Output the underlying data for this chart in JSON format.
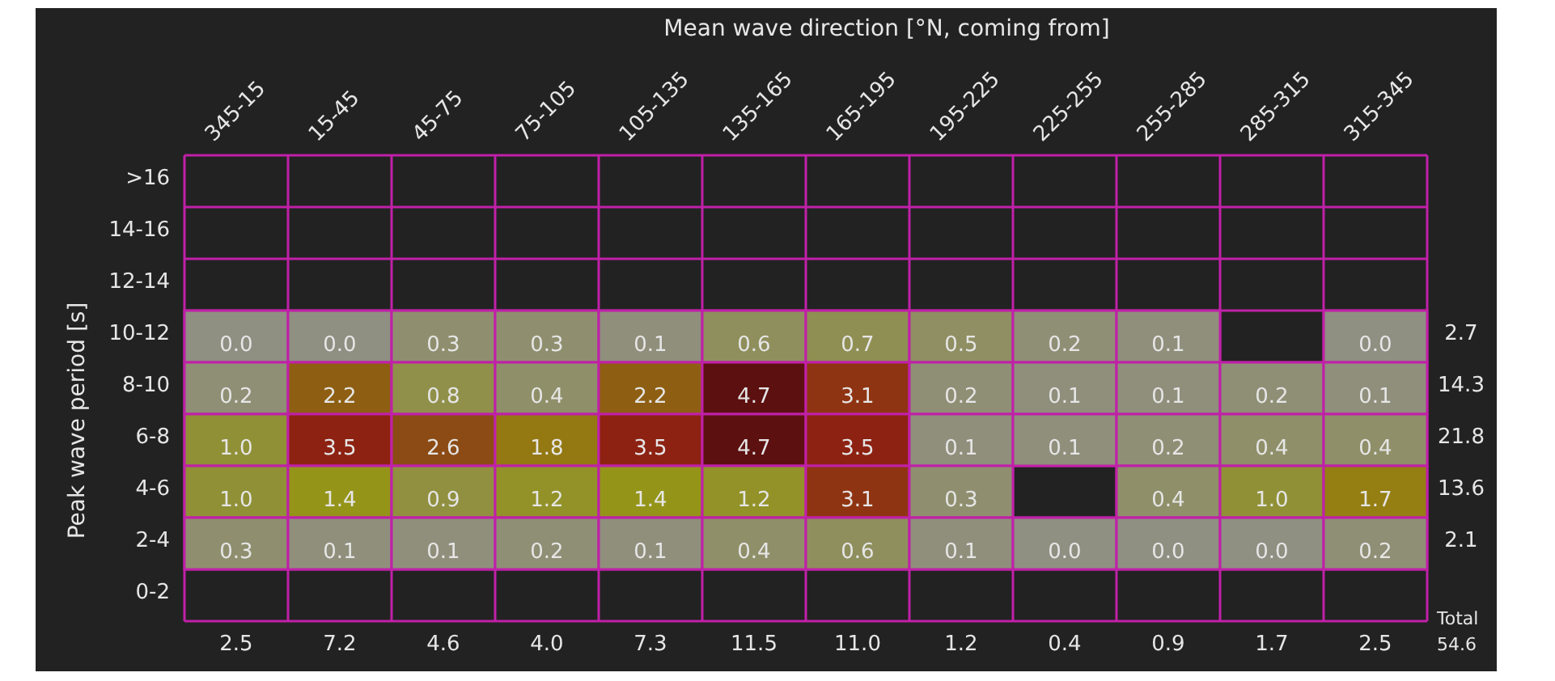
{
  "chart_data": {
    "type": "heatmap",
    "xlabel": "Mean wave direction [°N, coming from]",
    "ylabel": "Peak wave period [s]",
    "categories": [
      "345-15",
      "15-45",
      "45-75",
      "75-105",
      "105-135",
      "135-165",
      "165-195",
      "195-225",
      "225-255",
      "255-285",
      "285-315",
      "315-345"
    ],
    "y_categories": [
      ">16",
      "14-16",
      "12-14",
      "10-12",
      "8-10",
      "6-8",
      "4-6",
      "2-4",
      "0-2"
    ],
    "y2_categories": [
      null,
      null,
      null,
      "2.7",
      "14.3",
      "21.8",
      "13.6",
      "2.1",
      null
    ],
    "cells": [
      [
        null,
        null,
        null,
        null,
        null,
        null,
        null,
        null,
        null,
        null,
        null,
        null
      ],
      [
        null,
        null,
        null,
        null,
        null,
        null,
        null,
        null,
        null,
        null,
        null,
        null
      ],
      [
        null,
        null,
        null,
        null,
        null,
        null,
        null,
        null,
        null,
        null,
        null,
        null
      ],
      [
        0.0,
        0.0,
        0.3,
        0.3,
        0.1,
        0.6,
        0.7,
        0.5,
        0.2,
        0.1,
        null,
        0.0
      ],
      [
        0.2,
        2.2,
        0.8,
        0.4,
        2.2,
        4.7,
        3.1,
        0.2,
        0.1,
        0.1,
        0.2,
        0.1
      ],
      [
        1.0,
        3.5,
        2.6,
        1.8,
        3.5,
        4.7,
        3.5,
        0.1,
        0.1,
        0.2,
        0.4,
        0.4
      ],
      [
        1.0,
        1.4,
        0.9,
        1.2,
        1.4,
        1.2,
        3.1,
        0.3,
        null,
        0.4,
        1.0,
        1.7
      ],
      [
        0.3,
        0.1,
        0.1,
        0.2,
        0.1,
        0.4,
        0.6,
        0.1,
        0.0,
        0.0,
        0.0,
        0.2
      ],
      [
        null,
        null,
        null,
        null,
        null,
        null,
        null,
        null,
        null,
        null,
        null,
        null
      ]
    ],
    "cell_labels": [
      [
        null,
        null,
        null,
        null,
        null,
        null,
        null,
        null,
        null,
        null,
        null,
        null
      ],
      [
        null,
        null,
        null,
        null,
        null,
        null,
        null,
        null,
        null,
        null,
        null,
        null
      ],
      [
        null,
        null,
        null,
        null,
        null,
        null,
        null,
        null,
        null,
        null,
        null,
        null
      ],
      [
        "0.0",
        "0.0",
        "0.3",
        "0.3",
        "0.1",
        "0.6",
        "0.7",
        "0.5",
        "0.2",
        "0.1",
        null,
        "0.0"
      ],
      [
        "0.2",
        "2.2",
        "0.8",
        "0.4",
        "2.2",
        "4.7",
        "3.1",
        "0.2",
        "0.1",
        "0.1",
        "0.2",
        "0.1"
      ],
      [
        "1.0",
        "3.5",
        "2.6",
        "1.8",
        "3.5",
        "4.7",
        "3.5",
        "0.1",
        "0.1",
        "0.2",
        "0.4",
        "0.4"
      ],
      [
        "1.0",
        "1.4",
        "0.9",
        "1.2",
        "1.4",
        "1.2",
        "3.1",
        "0.3",
        null,
        "0.4",
        "1.0",
        "1.7"
      ],
      [
        "0.3",
        "0.1",
        "0.1",
        "0.2",
        "0.1",
        "0.4",
        "0.6",
        "0.1",
        "0.0",
        "0.0",
        "0.0",
        "0.2"
      ],
      [
        null,
        null,
        null,
        null,
        null,
        null,
        null,
        null,
        null,
        null,
        null,
        null
      ]
    ],
    "grid": true,
    "annotations": [
      "2.5",
      "7.2",
      "4.6",
      "4.0",
      "7.3",
      "11.5",
      "11.0",
      "1.2",
      "0.4",
      "0.9",
      "1.7",
      "2.5",
      "Total",
      "54.6"
    ]
  }
}
